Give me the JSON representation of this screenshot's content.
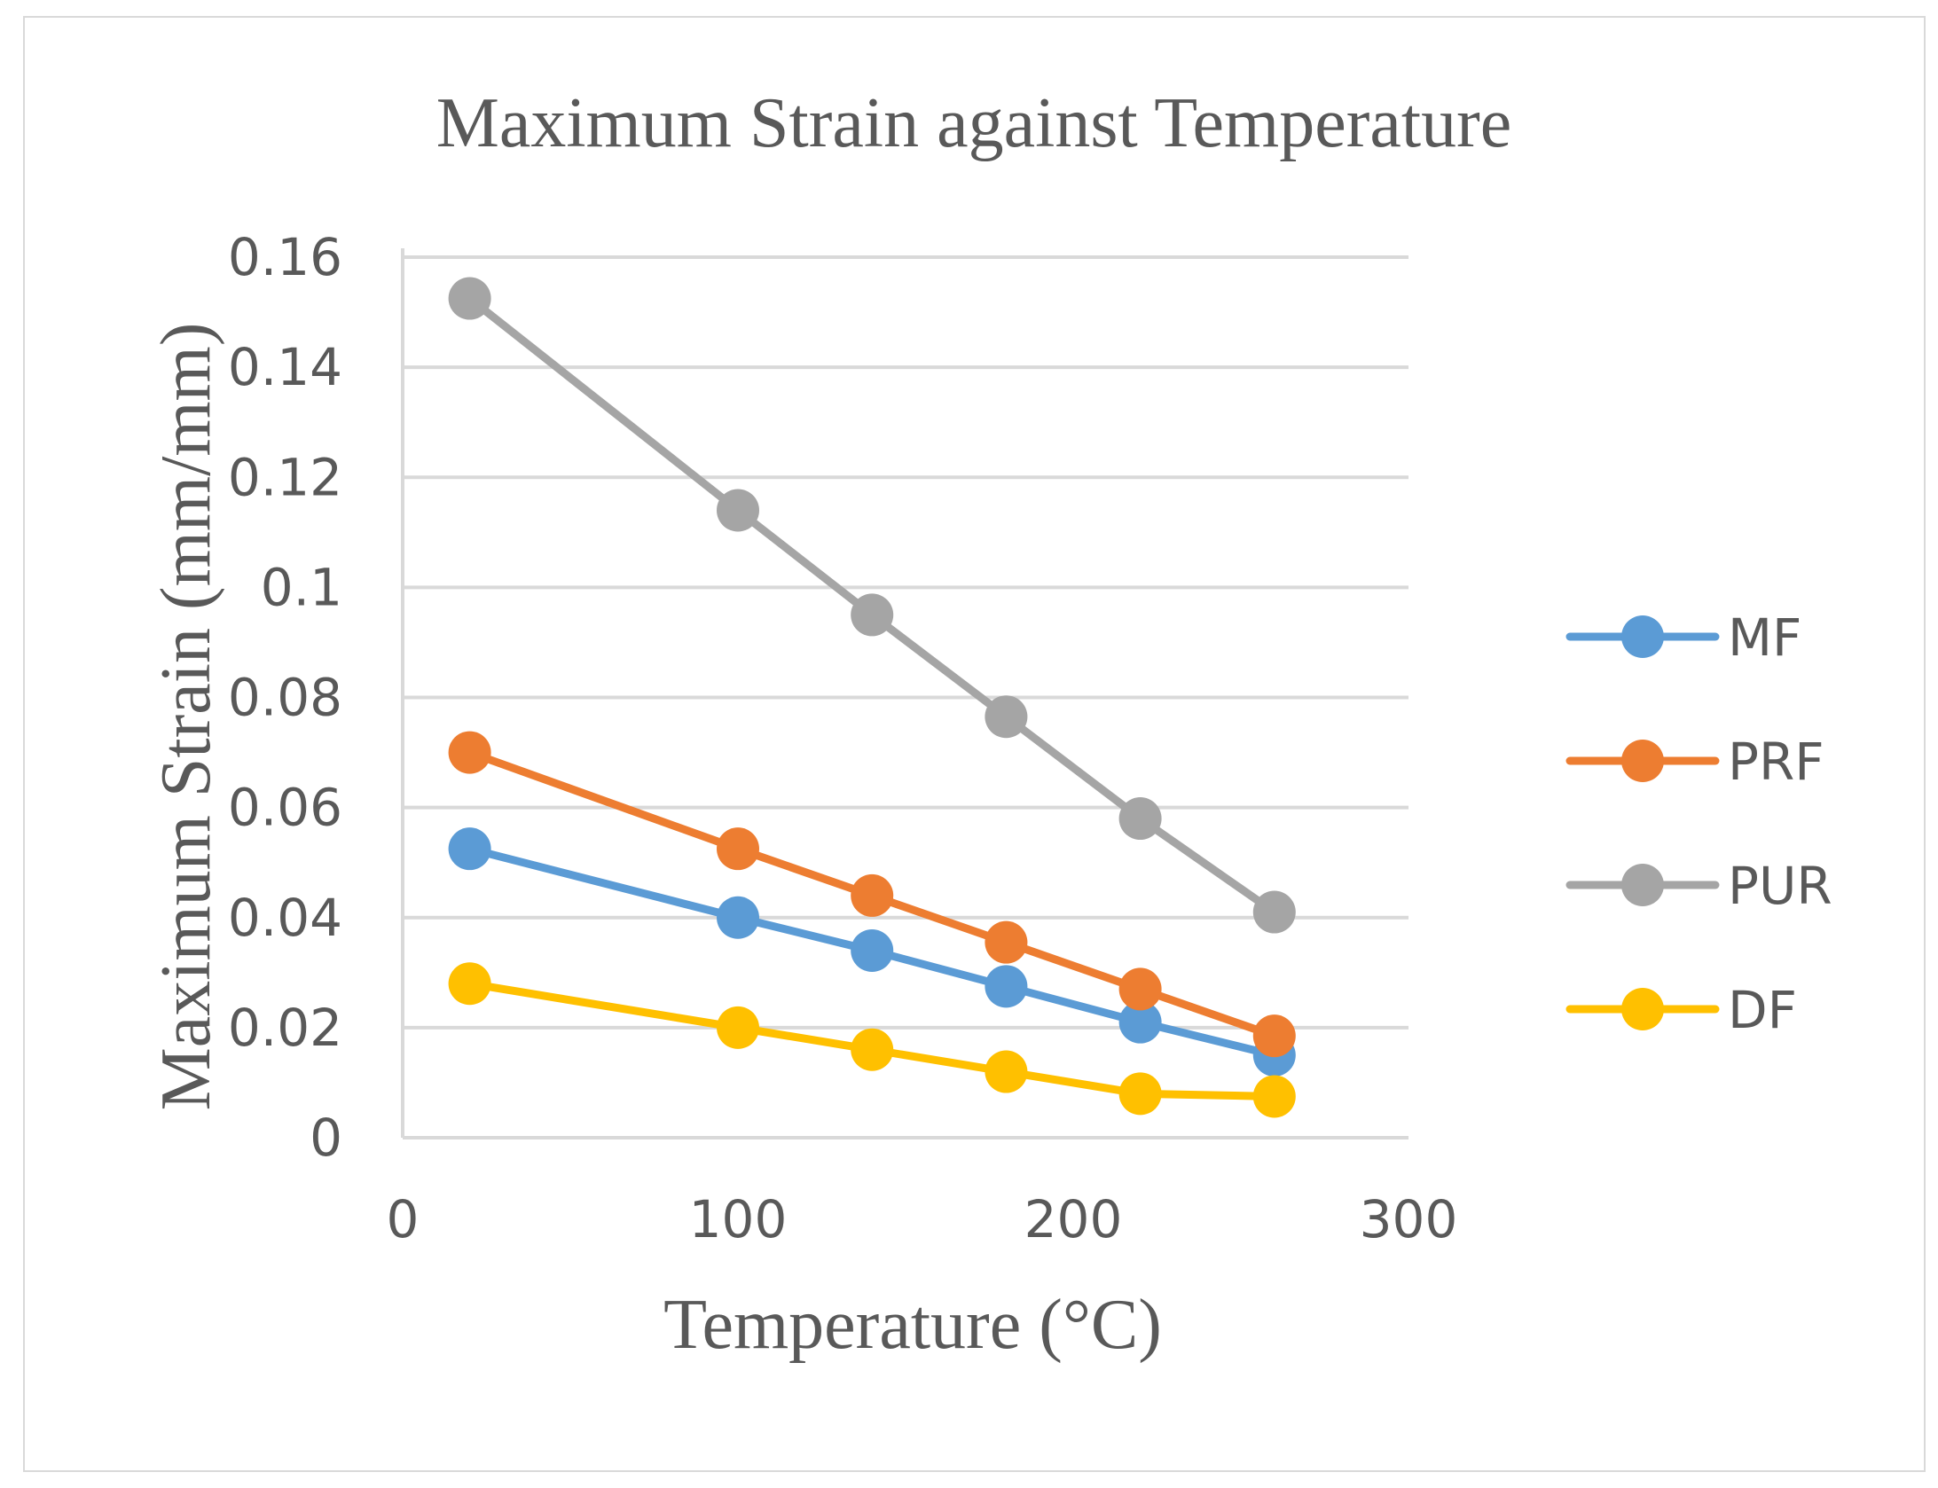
{
  "chart_data": {
    "type": "line",
    "title": "Maximum Strain against Temperature",
    "xlabel": "Temperature (°C)",
    "ylabel": "Maximum Strain (mm/mm)",
    "xlim": [
      0,
      300
    ],
    "ylim": [
      0,
      0.16
    ],
    "x_ticks": [
      "0",
      "100",
      "200",
      "300"
    ],
    "y_ticks": [
      "0",
      "0.02",
      "0.04",
      "0.06",
      "0.08",
      "0.1",
      "0.12",
      "0.14",
      "0.16"
    ],
    "grid": "horizontal",
    "legend_position": "right",
    "x": [
      20,
      100,
      140,
      180,
      220,
      260
    ],
    "series": [
      {
        "name": "MF",
        "color": "#5b9bd5",
        "values": [
          0.0525,
          0.04,
          0.034,
          0.0275,
          0.021,
          0.015
        ]
      },
      {
        "name": "PRF",
        "color": "#ed7d31",
        "values": [
          0.07,
          0.0525,
          0.044,
          0.0355,
          0.027,
          0.0185
        ]
      },
      {
        "name": "PUR",
        "color": "#a5a5a5",
        "values": [
          0.1525,
          0.114,
          0.095,
          0.0765,
          0.058,
          0.041
        ]
      },
      {
        "name": "DF",
        "color": "#ffc000",
        "values": [
          0.028,
          0.02,
          0.016,
          0.012,
          0.008,
          0.0075
        ]
      }
    ]
  }
}
